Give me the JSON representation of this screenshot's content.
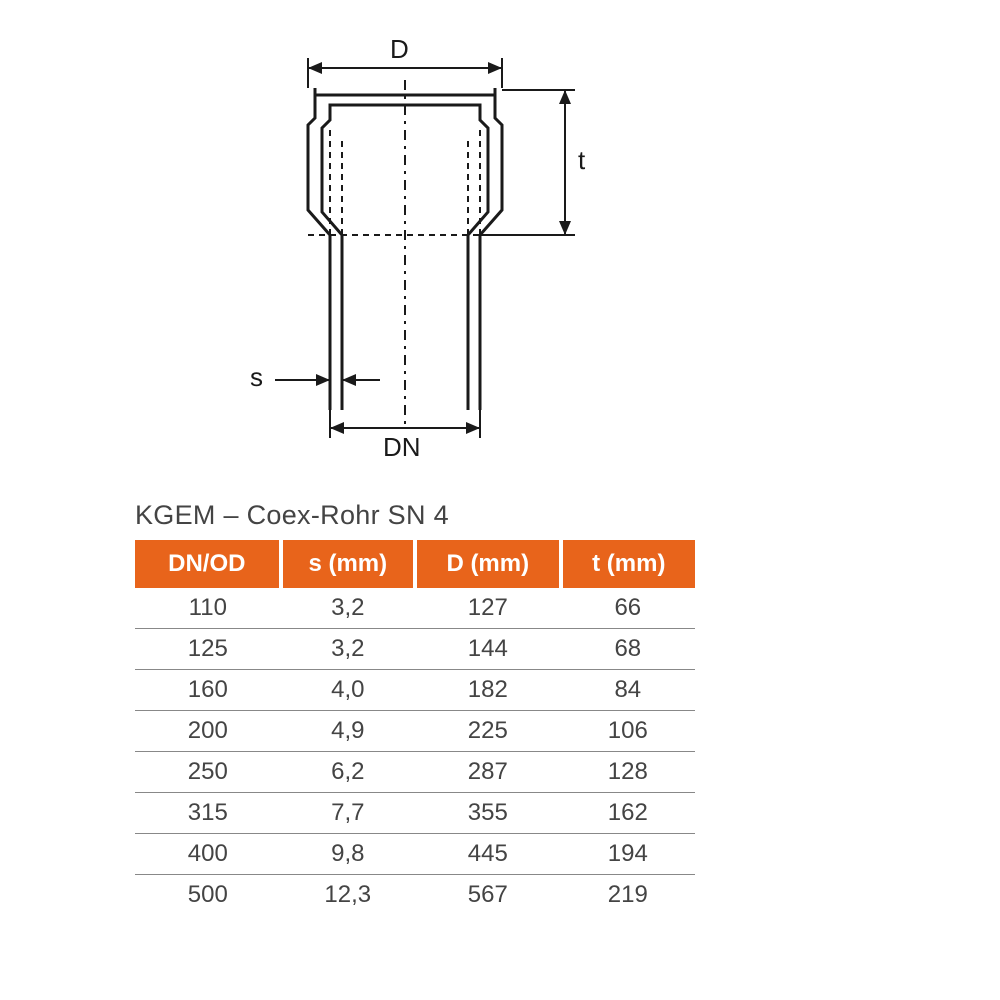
{
  "diagram": {
    "labels": {
      "D": "D",
      "t": "t",
      "s": "s",
      "DN": "DN"
    },
    "stroke": "#1a1a1a",
    "stroke_width": 3,
    "centerline_dash": "8 6 3 6"
  },
  "title": "KGEM – Coex-Rohr SN 4",
  "table": {
    "header_bg": "#e8641b",
    "header_fg": "#ffffff",
    "row_border": "#888888",
    "columns": [
      "DN/OD",
      "s (mm)",
      "D (mm)",
      "t (mm)"
    ],
    "col_widths_pct": [
      26,
      24,
      26,
      24
    ],
    "rows": [
      [
        "110",
        "3,2",
        "127",
        "66"
      ],
      [
        "125",
        "3,2",
        "144",
        "68"
      ],
      [
        "160",
        "4,0",
        "182",
        "84"
      ],
      [
        "200",
        "4,9",
        "225",
        "106"
      ],
      [
        "250",
        "6,2",
        "287",
        "128"
      ],
      [
        "315",
        "7,7",
        "355",
        "162"
      ],
      [
        "400",
        "9,8",
        "445",
        "194"
      ],
      [
        "500",
        "12,3",
        "567",
        "219"
      ]
    ]
  }
}
